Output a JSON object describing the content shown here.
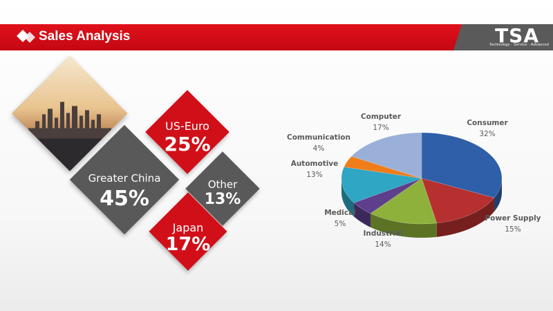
{
  "header": {
    "title": "Sales Analysis",
    "logo_text": "TSA",
    "logo_tagline": "Technology · Service · Advanced"
  },
  "regions": [
    {
      "name": "US-Euro",
      "value": "25%"
    },
    {
      "name": "Greater China",
      "value": "45%"
    },
    {
      "name": "Other",
      "value": "13%"
    },
    {
      "name": "Japan",
      "value": "17%"
    }
  ],
  "colors": {
    "accent_red": "#d10f19",
    "dark_gray": "#595959"
  },
  "chart_data": {
    "type": "pie",
    "title": "",
    "slices": [
      {
        "label": "Consumer",
        "value": 32,
        "value_label": "32%",
        "color": "#2e5fa8"
      },
      {
        "label": "Power Supply",
        "value": 15,
        "value_label": "15%",
        "color": "#b5302f"
      },
      {
        "label": "Industrial",
        "value": 14,
        "value_label": "14%",
        "color": "#8eb13b"
      },
      {
        "label": "Medical",
        "value": 5,
        "value_label": "5%",
        "color": "#5d3f8c"
      },
      {
        "label": "Automotive",
        "value": 13,
        "value_label": "13%",
        "color": "#2ea6c4"
      },
      {
        "label": "Communication",
        "value": 4,
        "value_label": "4%",
        "color": "#ef7d1a"
      },
      {
        "label": "Computer",
        "value": 17,
        "value_label": "17%",
        "color": "#9bb0d8"
      }
    ]
  }
}
